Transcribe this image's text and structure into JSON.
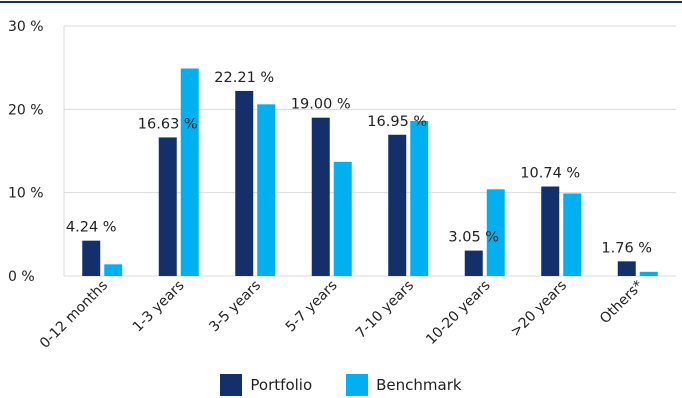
{
  "chart_data": {
    "type": "bar",
    "categories": [
      "0-12 months",
      "1-3 years",
      "3-5 years",
      "5-7 years",
      "7-10 years",
      "10-20 years",
      ">20 years",
      "Others*"
    ],
    "series": [
      {
        "name": "Portfolio",
        "values": [
          4.24,
          16.63,
          22.21,
          19.0,
          16.95,
          3.05,
          10.74,
          1.76
        ],
        "labels": [
          "4.24 %",
          "16.63 %",
          "22.21 %",
          "19.00 %",
          "16.95 %",
          "3.05 %",
          "10.74 %",
          "1.76 %"
        ],
        "color": "#14306b"
      },
      {
        "name": "Benchmark",
        "values": [
          1.4,
          24.9,
          20.6,
          13.7,
          18.6,
          10.4,
          9.9,
          0.5
        ],
        "color": "#00b0f0"
      }
    ],
    "ylim": [
      0,
      30
    ],
    "yticks": [
      0,
      10,
      20,
      30
    ],
    "ytick_labels": [
      "0 %",
      "10 %",
      "20 %",
      "30 %"
    ],
    "grid": true,
    "legend_position": "bottom",
    "title": "",
    "xlabel": "",
    "ylabel": ""
  },
  "colors": {
    "top_rule": "#14306b",
    "gridline": "#d9d9d9"
  }
}
